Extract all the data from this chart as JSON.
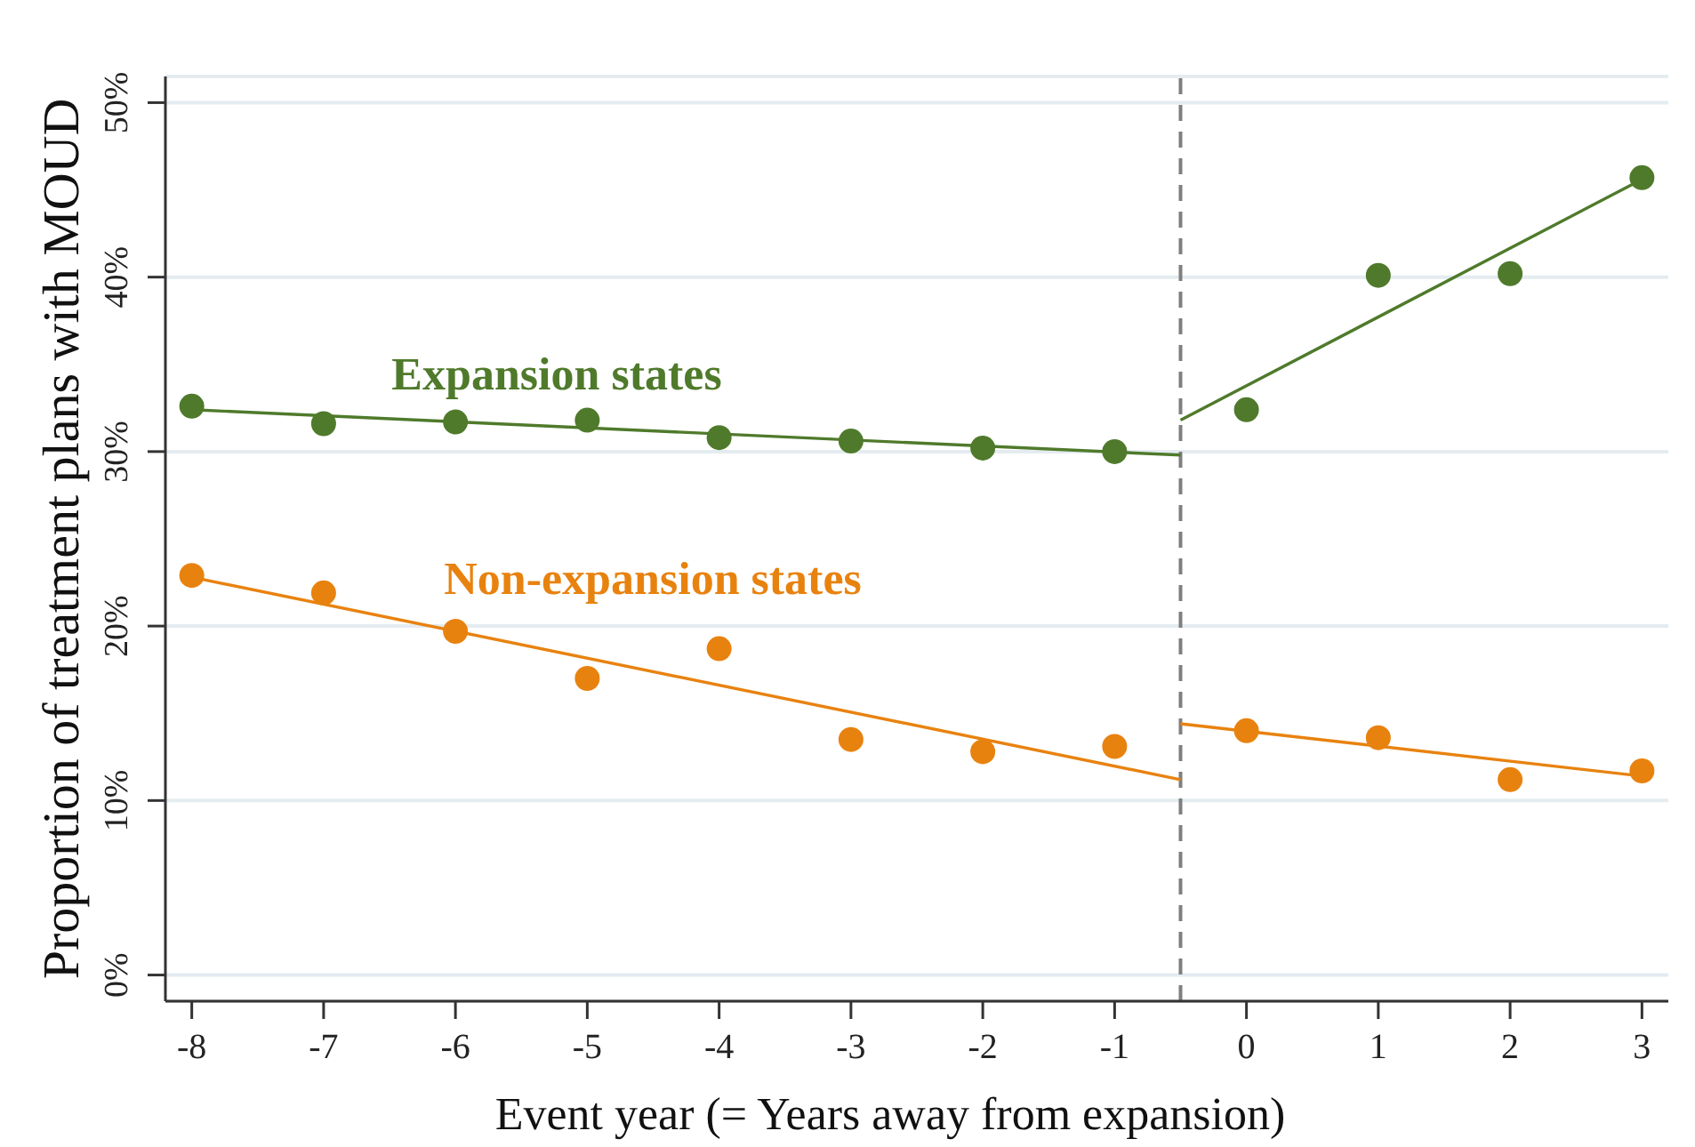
{
  "chart_data": {
    "type": "scatter",
    "xlabel": "Event year (= Years away from expansion)",
    "ylabel": "Proportion of treatment plans with MOUD",
    "x": [
      -8,
      -7,
      -6,
      -5,
      -4,
      -3,
      -2,
      -1,
      0,
      1,
      2,
      3
    ],
    "xlim": [
      -8.2,
      3.2
    ],
    "xticks": [
      -8,
      -7,
      -6,
      -5,
      -4,
      -3,
      -2,
      -1,
      0,
      1,
      2,
      3
    ],
    "ylim": [
      -1.5,
      51.5
    ],
    "yticks": [
      {
        "value": 0,
        "label": "0%"
      },
      {
        "value": 10,
        "label": "10%"
      },
      {
        "value": 20,
        "label": "20%"
      },
      {
        "value": 30,
        "label": "30%"
      },
      {
        "value": 40,
        "label": "40%"
      },
      {
        "value": 50,
        "label": "50%"
      }
    ],
    "grid": "y",
    "marker": "circle",
    "series": [
      {
        "name": "Expansion states",
        "color": "#4f7a2b",
        "values": [
          32.6,
          31.6,
          31.7,
          31.8,
          30.8,
          30.6,
          30.2,
          30.0,
          32.4,
          40.1,
          40.2,
          45.7
        ]
      },
      {
        "name": "Non-expansion states",
        "color": "#e8820f",
        "values": [
          22.9,
          21.9,
          19.7,
          17.0,
          18.7,
          13.5,
          12.8,
          13.1,
          14.0,
          13.6,
          11.2,
          11.7
        ]
      },
      {
        "type": "line",
        "marker": "none",
        "color": "#4f7a2b",
        "x": [
          -8,
          -0.5
        ],
        "values": [
          32.4,
          29.8
        ]
      },
      {
        "type": "line",
        "marker": "none",
        "color": "#4f7a2b",
        "x": [
          -0.5,
          3
        ],
        "values": [
          31.8,
          45.6
        ]
      },
      {
        "type": "line",
        "marker": "none",
        "color": "#e8820f",
        "x": [
          -8,
          -0.5
        ],
        "values": [
          22.8,
          11.2
        ]
      },
      {
        "type": "line",
        "marker": "none",
        "color": "#e8820f",
        "x": [
          -0.5,
          3
        ],
        "values": [
          14.4,
          11.4
        ]
      }
    ],
    "ref_lines": [
      {
        "axis": "x",
        "value": -0.5,
        "color": "#7f7f7f",
        "line_style": "dashed"
      }
    ]
  }
}
